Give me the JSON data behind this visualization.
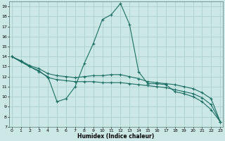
{
  "xlabel": "Humidex (Indice chaleur)",
  "bg_color": "#cce8e6",
  "grid_color": "#aacfcc",
  "line_color": "#1a6e64",
  "line1_x": [
    0,
    1,
    2,
    3,
    4,
    5,
    6,
    7,
    8,
    9,
    10,
    11,
    12,
    13,
    14,
    15,
    16,
    17,
    18,
    19,
    20,
    21,
    22,
    23
  ],
  "line1_y": [
    14.0,
    13.5,
    13.0,
    12.5,
    12.0,
    9.5,
    9.8,
    11.0,
    13.3,
    15.3,
    17.7,
    18.2,
    19.3,
    17.2,
    12.5,
    11.3,
    11.3,
    11.2,
    10.5,
    10.3,
    10.0,
    9.5,
    8.7,
    7.5
  ],
  "line2_x": [
    0,
    1,
    2,
    3,
    4,
    5,
    6,
    7,
    8,
    9,
    10,
    11,
    12,
    13,
    14,
    15,
    16,
    17,
    18,
    19,
    20,
    21,
    22,
    23
  ],
  "line2_y": [
    14.0,
    13.6,
    13.1,
    12.8,
    12.3,
    12.1,
    12.0,
    11.9,
    12.0,
    12.1,
    12.1,
    12.2,
    12.2,
    12.0,
    11.8,
    11.5,
    11.4,
    11.3,
    11.2,
    11.0,
    10.8,
    10.4,
    9.8,
    7.5
  ],
  "line3_x": [
    0,
    1,
    2,
    3,
    4,
    5,
    6,
    7,
    8,
    9,
    10,
    11,
    12,
    13,
    14,
    15,
    16,
    17,
    18,
    19,
    20,
    21,
    22,
    23
  ],
  "line3_y": [
    14.0,
    13.5,
    13.0,
    12.6,
    11.9,
    11.7,
    11.6,
    11.5,
    11.5,
    11.5,
    11.4,
    11.4,
    11.4,
    11.3,
    11.2,
    11.1,
    11.0,
    10.9,
    10.7,
    10.5,
    10.3,
    9.9,
    9.2,
    7.5
  ],
  "xlim": [
    -0.3,
    23.3
  ],
  "ylim": [
    7,
    19.5
  ],
  "yticks": [
    7,
    8,
    9,
    10,
    11,
    12,
    13,
    14,
    15,
    16,
    17,
    18,
    19
  ],
  "xticks": [
    0,
    1,
    2,
    3,
    4,
    5,
    6,
    7,
    8,
    9,
    10,
    11,
    12,
    13,
    14,
    15,
    16,
    17,
    18,
    19,
    20,
    21,
    22,
    23
  ]
}
